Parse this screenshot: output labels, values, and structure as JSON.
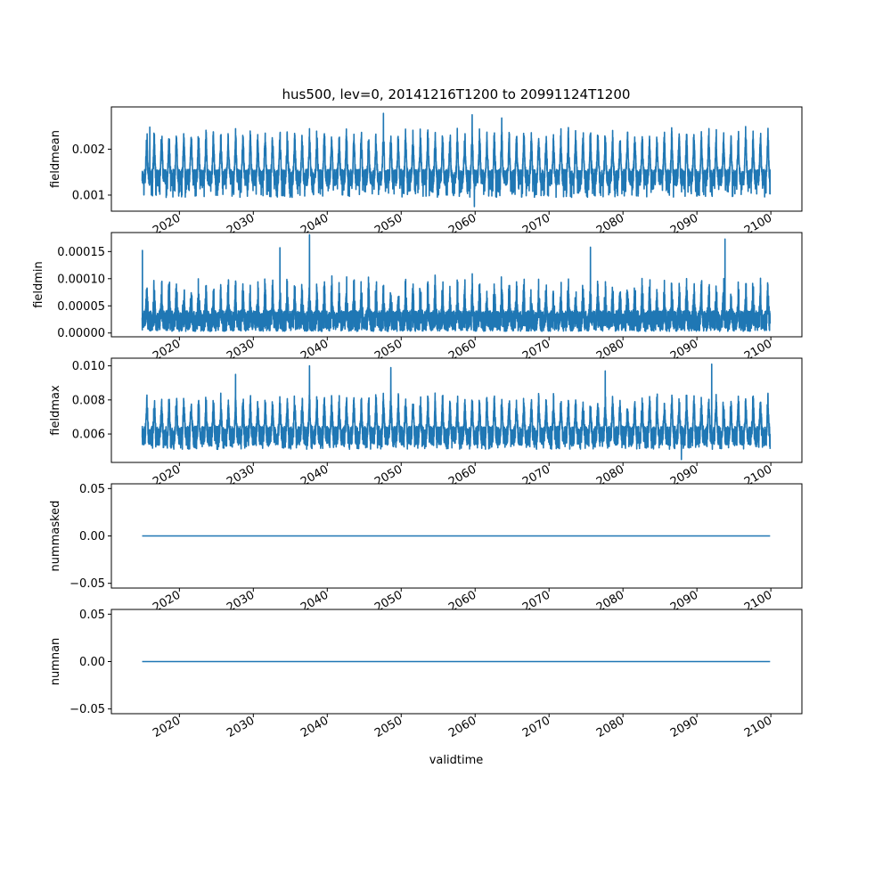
{
  "chart_data": {
    "type": "line",
    "title": "hus500, lev=0, 20141216T1200 to 20991124T1200",
    "xlabel": "validtime",
    "x_range": [
      2014.96,
      2099.9
    ],
    "xlim": [
      2010.8,
      2104.2
    ],
    "x_ticks": [
      "2020",
      "2030",
      "2040",
      "2050",
      "2060",
      "2070",
      "2080",
      "2090",
      "2100"
    ],
    "line_color": "#1f77b4",
    "subplots": [
      {
        "ylabel": "fieldmean",
        "ylim": [
          0.00065,
          0.00292
        ],
        "y_ticks": [
          {
            "value": 0.001,
            "label": "0.001"
          },
          {
            "value": 0.002,
            "label": "0.002"
          }
        ],
        "series": {
          "kind": "seasonal",
          "base": 0.00138,
          "low": 0.00095,
          "peak": 0.00225,
          "jitter": 0.00018,
          "spikes": [
            [
              2047.6,
              0.00278
            ],
            [
              2059.6,
              0.00275
            ],
            [
              2063.6,
              0.00268
            ],
            [
              2016.0,
              0.00248
            ],
            [
              2059.9,
              0.00075
            ]
          ]
        }
      },
      {
        "ylabel": "fieldmin",
        "ylim": [
          -7e-06,
          0.000185
        ],
        "y_ticks": [
          {
            "value": 0.0,
            "label": "0.00000"
          },
          {
            "value": 5e-05,
            "label": "0.00005"
          },
          {
            "value": 0.0001,
            "label": "0.00010"
          },
          {
            "value": 0.00015,
            "label": "0.00015"
          }
        ],
        "series": {
          "kind": "dense",
          "base": 3e-05,
          "low": 3e-06,
          "peak": 0.000105,
          "jitter": 3.5e-05,
          "spikes": [
            [
              2037.6,
              0.000181
            ],
            [
              2093.8,
              0.000173
            ],
            [
              2015.0,
              0.000152
            ],
            [
              2075.6,
              0.000158
            ],
            [
              2033.6,
              0.000157
            ]
          ]
        }
      },
      {
        "ylabel": "fieldmax",
        "ylim": [
          0.00433,
          0.01045
        ],
        "y_ticks": [
          {
            "value": 0.006,
            "label": "0.006"
          },
          {
            "value": 0.008,
            "label": "0.008"
          },
          {
            "value": 0.01,
            "label": "0.010"
          }
        ],
        "series": {
          "kind": "seasonal",
          "base": 0.0059,
          "low": 0.0051,
          "peak": 0.0078,
          "jitter": 0.00055,
          "spikes": [
            [
              2037.6,
              0.01
            ],
            [
              2092.0,
              0.0101
            ],
            [
              2048.6,
              0.0099
            ],
            [
              2077.6,
              0.0097
            ],
            [
              2027.6,
              0.0095
            ],
            [
              2087.9,
              0.0045
            ]
          ]
        }
      },
      {
        "ylabel": "nummasked",
        "ylim": [
          -0.055,
          0.055
        ],
        "y_ticks": [
          {
            "value": -0.05,
            "label": "−0.05"
          },
          {
            "value": 0.0,
            "label": "0.00"
          },
          {
            "value": 0.05,
            "label": "0.05"
          }
        ],
        "series": {
          "kind": "constant",
          "value": 0.0
        }
      },
      {
        "ylabel": "numnan",
        "ylim": [
          -0.055,
          0.055
        ],
        "y_ticks": [
          {
            "value": -0.05,
            "label": "−0.05"
          },
          {
            "value": 0.0,
            "label": "0.00"
          },
          {
            "value": 0.05,
            "label": "0.05"
          }
        ],
        "series": {
          "kind": "constant",
          "value": 0.0
        }
      }
    ]
  }
}
